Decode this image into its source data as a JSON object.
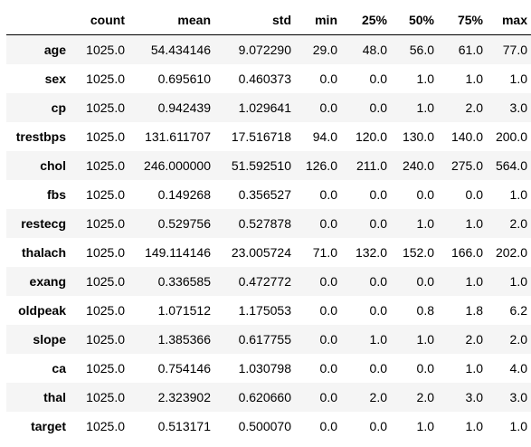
{
  "table": {
    "columns": [
      "count",
      "mean",
      "std",
      "min",
      "25%",
      "50%",
      "75%",
      "max"
    ],
    "rows": [
      {
        "label": "age",
        "values": [
          "1025.0",
          "54.434146",
          "9.072290",
          "29.0",
          "48.0",
          "56.0",
          "61.0",
          "77.0"
        ]
      },
      {
        "label": "sex",
        "values": [
          "1025.0",
          "0.695610",
          "0.460373",
          "0.0",
          "0.0",
          "1.0",
          "1.0",
          "1.0"
        ]
      },
      {
        "label": "cp",
        "values": [
          "1025.0",
          "0.942439",
          "1.029641",
          "0.0",
          "0.0",
          "1.0",
          "2.0",
          "3.0"
        ]
      },
      {
        "label": "trestbps",
        "values": [
          "1025.0",
          "131.611707",
          "17.516718",
          "94.0",
          "120.0",
          "130.0",
          "140.0",
          "200.0"
        ]
      },
      {
        "label": "chol",
        "values": [
          "1025.0",
          "246.000000",
          "51.592510",
          "126.0",
          "211.0",
          "240.0",
          "275.0",
          "564.0"
        ]
      },
      {
        "label": "fbs",
        "values": [
          "1025.0",
          "0.149268",
          "0.356527",
          "0.0",
          "0.0",
          "0.0",
          "0.0",
          "1.0"
        ]
      },
      {
        "label": "restecg",
        "values": [
          "1025.0",
          "0.529756",
          "0.527878",
          "0.0",
          "0.0",
          "1.0",
          "1.0",
          "2.0"
        ]
      },
      {
        "label": "thalach",
        "values": [
          "1025.0",
          "149.114146",
          "23.005724",
          "71.0",
          "132.0",
          "152.0",
          "166.0",
          "202.0"
        ]
      },
      {
        "label": "exang",
        "values": [
          "1025.0",
          "0.336585",
          "0.472772",
          "0.0",
          "0.0",
          "0.0",
          "1.0",
          "1.0"
        ]
      },
      {
        "label": "oldpeak",
        "values": [
          "1025.0",
          "1.071512",
          "1.175053",
          "0.0",
          "0.0",
          "0.8",
          "1.8",
          "6.2"
        ]
      },
      {
        "label": "slope",
        "values": [
          "1025.0",
          "1.385366",
          "0.617755",
          "0.0",
          "1.0",
          "1.0",
          "2.0",
          "2.0"
        ]
      },
      {
        "label": "ca",
        "values": [
          "1025.0",
          "0.754146",
          "1.030798",
          "0.0",
          "0.0",
          "0.0",
          "1.0",
          "4.0"
        ]
      },
      {
        "label": "thal",
        "values": [
          "1025.0",
          "2.323902",
          "0.620660",
          "0.0",
          "2.0",
          "2.0",
          "3.0",
          "3.0"
        ]
      },
      {
        "label": "target",
        "values": [
          "1025.0",
          "0.513171",
          "0.500070",
          "0.0",
          "0.0",
          "1.0",
          "1.0",
          "1.0"
        ]
      }
    ]
  },
  "colors": {
    "stripe": "#f5f5f5",
    "background": "#ffffff",
    "text": "#000000"
  }
}
